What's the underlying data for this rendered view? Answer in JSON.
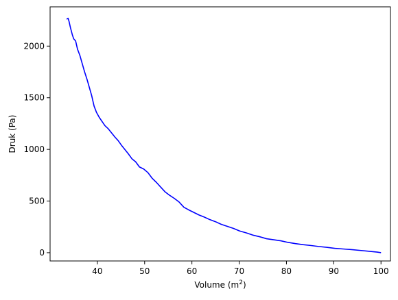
{
  "chart_data": {
    "type": "line",
    "title": "",
    "xlabel": "Volume (m",
    "xlabel_sup": "2",
    "xlabel_tail": ")",
    "ylabel": "Druk (Pa)",
    "xlim": [
      30,
      102
    ],
    "ylim": [
      -80,
      2380
    ],
    "xticks": [
      40,
      50,
      60,
      70,
      80,
      90,
      100
    ],
    "yticks": [
      0,
      500,
      1000,
      1500,
      2000
    ],
    "grid": false,
    "series": [
      {
        "color": "#0000ff",
        "x": [
          33.5,
          33.8,
          34.0,
          34.3,
          34.7,
          35.0,
          35.4,
          35.8,
          36.3,
          36.8,
          37.3,
          37.8,
          38.3,
          38.8,
          39.3,
          39.8,
          40.4,
          41.0,
          41.6,
          42.3,
          43.0,
          43.7,
          44.4,
          45.1,
          45.8,
          46.5,
          47.3,
          48.1,
          48.9,
          49.8,
          50.7,
          51.6,
          52.5,
          53.4,
          54.3,
          55.3,
          56.3,
          57.3,
          58.3,
          59.3,
          60.4,
          61.5,
          62.6,
          63.8,
          65.0,
          66.2,
          67.5,
          68.8,
          70.1,
          71.5,
          72.9,
          74.3,
          75.8,
          77.3,
          78.8,
          80.3,
          81.9,
          83.5,
          85.1,
          86.8,
          88.5,
          90.2,
          92.0,
          93.8,
          95.6,
          97.4,
          99.2,
          100.0
        ],
        "y": [
          2260,
          2270,
          2240,
          2180,
          2110,
          2070,
          2050,
          1970,
          1910,
          1830,
          1750,
          1680,
          1600,
          1520,
          1420,
          1360,
          1310,
          1270,
          1230,
          1200,
          1160,
          1120,
          1085,
          1040,
          1000,
          960,
          910,
          880,
          830,
          810,
          775,
          720,
          680,
          635,
          590,
          555,
          525,
          490,
          440,
          415,
          390,
          365,
          345,
          320,
          300,
          275,
          255,
          235,
          210,
          192,
          170,
          155,
          135,
          125,
          115,
          100,
          88,
          78,
          70,
          60,
          52,
          42,
          36,
          30,
          22,
          14,
          6,
          0
        ]
      }
    ]
  }
}
